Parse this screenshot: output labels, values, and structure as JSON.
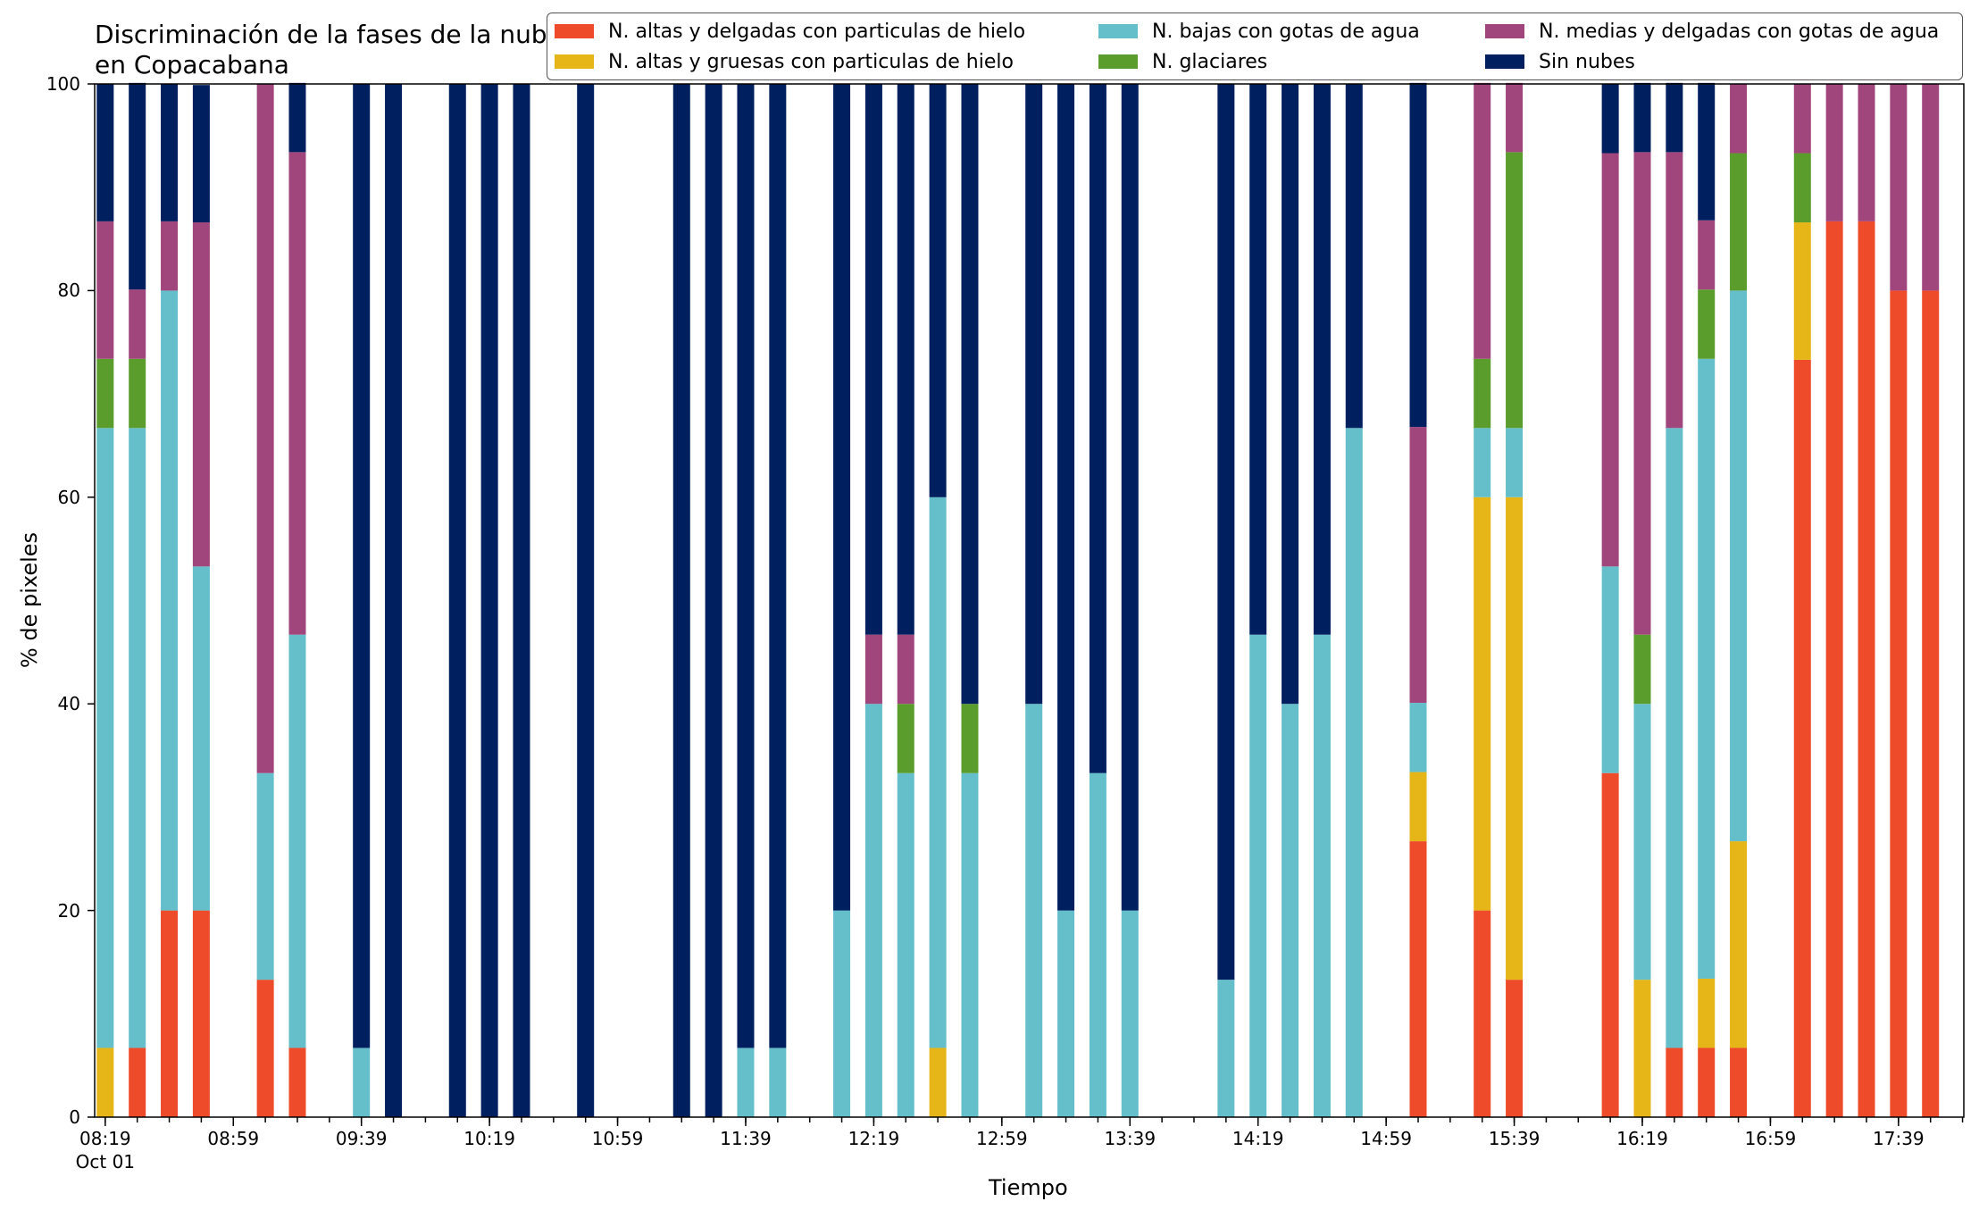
{
  "chart_data": {
    "type": "bar",
    "stacked": true,
    "title": "Discriminación de la fases de la nube en Copacabana",
    "xlabel": "Tiempo",
    "ylabel": "% de pixeles",
    "ylim": [
      0,
      100
    ],
    "yticks": [
      "0",
      "20",
      "40",
      "60",
      "80",
      "100"
    ],
    "xtick_labels": [
      {
        "time": "08:19",
        "sub": "Oct 01"
      },
      {
        "time": "08:59",
        "sub": ""
      },
      {
        "time": "09:39",
        "sub": ""
      },
      {
        "time": "10:19",
        "sub": ""
      },
      {
        "time": "10:59",
        "sub": ""
      },
      {
        "time": "11:39",
        "sub": ""
      },
      {
        "time": "12:19",
        "sub": ""
      },
      {
        "time": "12:59",
        "sub": ""
      },
      {
        "time": "13:39",
        "sub": ""
      },
      {
        "time": "14:19",
        "sub": ""
      },
      {
        "time": "14:59",
        "sub": ""
      },
      {
        "time": "15:39",
        "sub": ""
      },
      {
        "time": "16:19",
        "sub": ""
      },
      {
        "time": "16:59",
        "sub": ""
      },
      {
        "time": "17:39",
        "sub": ""
      }
    ],
    "xrange": [
      "08:19",
      "17:59"
    ],
    "grid": false,
    "legend_position": "top-right",
    "series": [
      {
        "name": "N. altas y delgadas con particulas de hielo",
        "color": "#ee4b2b"
      },
      {
        "name": "N. altas y gruesas con particulas de hielo",
        "color": "#e6b618"
      },
      {
        "name": "N. bajas con gotas de agua",
        "color": "#65bfcb"
      },
      {
        "name": "N. glaciares",
        "color": "#5b9d2c"
      },
      {
        "name": "N. medias y delgadas con gotas de agua",
        "color": "#a1457d"
      },
      {
        "name": "Sin nubes",
        "color": "#001f5f"
      }
    ],
    "legend_order": [
      0,
      2,
      4,
      1,
      3,
      5
    ],
    "bars": [
      {
        "time": "08:19",
        "values": [
          0,
          6.7,
          60,
          6.7,
          13.3,
          13.3
        ]
      },
      {
        "time": "08:29",
        "values": [
          6.7,
          0,
          60,
          6.7,
          6.7,
          20
        ]
      },
      {
        "time": "08:39",
        "values": [
          20,
          0,
          60,
          0,
          6.7,
          13.3
        ]
      },
      {
        "time": "08:49",
        "values": [
          20,
          0,
          33.3,
          0,
          33.3,
          13.3
        ]
      },
      {
        "time": "09:09",
        "values": [
          13.3,
          0,
          20,
          0,
          66.7,
          0
        ]
      },
      {
        "time": "09:19",
        "values": [
          6.7,
          0,
          40,
          0,
          46.7,
          6.7
        ]
      },
      {
        "time": "09:39",
        "values": [
          0,
          0,
          6.7,
          0,
          0,
          93.3
        ]
      },
      {
        "time": "09:49",
        "values": [
          0,
          0,
          0,
          0,
          0,
          100
        ]
      },
      {
        "time": "10:09",
        "values": [
          0,
          0,
          0,
          0,
          0,
          100
        ]
      },
      {
        "time": "10:19",
        "values": [
          0,
          0,
          0,
          0,
          0,
          100
        ]
      },
      {
        "time": "10:29",
        "values": [
          0,
          0,
          0,
          0,
          0,
          100
        ]
      },
      {
        "time": "10:49",
        "values": [
          0,
          0,
          0,
          0,
          0,
          100
        ]
      },
      {
        "time": "11:19",
        "values": [
          0,
          0,
          0,
          0,
          0,
          100
        ]
      },
      {
        "time": "11:29",
        "values": [
          0,
          0,
          0,
          0,
          0,
          100
        ]
      },
      {
        "time": "11:39",
        "values": [
          0,
          0,
          6.7,
          0,
          0,
          93.3
        ]
      },
      {
        "time": "11:49",
        "values": [
          0,
          0,
          6.7,
          0,
          0,
          93.3
        ]
      },
      {
        "time": "12:09",
        "values": [
          0,
          0,
          20,
          0,
          0,
          80
        ]
      },
      {
        "time": "12:19",
        "values": [
          0,
          0,
          40,
          0,
          6.7,
          53.3
        ]
      },
      {
        "time": "12:29",
        "values": [
          0,
          0,
          33.3,
          6.7,
          6.7,
          53.3
        ]
      },
      {
        "time": "12:39",
        "values": [
          0,
          6.7,
          53.3,
          0,
          0,
          40
        ]
      },
      {
        "time": "12:49",
        "values": [
          0,
          0,
          33.3,
          6.7,
          0,
          60
        ]
      },
      {
        "time": "13:09",
        "values": [
          0,
          0,
          40,
          0,
          0,
          60
        ]
      },
      {
        "time": "13:19",
        "values": [
          0,
          0,
          20,
          0,
          0,
          80
        ]
      },
      {
        "time": "13:29",
        "values": [
          0,
          0,
          33.3,
          0,
          0,
          66.7
        ]
      },
      {
        "time": "13:39",
        "values": [
          0,
          0,
          20,
          0,
          0,
          80
        ]
      },
      {
        "time": "14:09",
        "values": [
          0,
          0,
          13.3,
          0,
          0,
          86.7
        ]
      },
      {
        "time": "14:19",
        "values": [
          0,
          0,
          46.7,
          0,
          0,
          53.3
        ]
      },
      {
        "time": "14:29",
        "values": [
          0,
          0,
          40,
          0,
          0,
          60
        ]
      },
      {
        "time": "14:39",
        "values": [
          0,
          0,
          46.7,
          0,
          0,
          53.3
        ]
      },
      {
        "time": "14:49",
        "values": [
          0,
          0,
          66.7,
          0,
          0,
          33.3
        ]
      },
      {
        "time": "15:09",
        "values": [
          26.7,
          6.7,
          6.7,
          0,
          26.7,
          33.3
        ]
      },
      {
        "time": "15:29",
        "values": [
          20,
          40,
          6.7,
          6.7,
          26.7,
          0
        ]
      },
      {
        "time": "15:39",
        "values": [
          13.3,
          46.7,
          6.7,
          26.7,
          6.7,
          0
        ]
      },
      {
        "time": "16:09",
        "values": [
          33.3,
          0,
          20,
          0,
          40,
          6.7
        ]
      },
      {
        "time": "16:19",
        "values": [
          0,
          13.3,
          26.7,
          6.7,
          46.7,
          6.7
        ]
      },
      {
        "time": "16:29",
        "values": [
          6.7,
          0,
          60,
          0,
          26.7,
          6.7
        ]
      },
      {
        "time": "16:39",
        "values": [
          6.7,
          6.7,
          60,
          6.7,
          6.7,
          13.3
        ]
      },
      {
        "time": "16:49",
        "values": [
          6.7,
          20,
          53.3,
          13.3,
          6.7,
          0
        ]
      },
      {
        "time": "17:09",
        "values": [
          73.3,
          13.3,
          0,
          6.7,
          6.7,
          0
        ]
      },
      {
        "time": "17:19",
        "values": [
          86.7,
          0,
          0,
          0,
          13.3,
          0
        ]
      },
      {
        "time": "17:29",
        "values": [
          86.7,
          0,
          0,
          0,
          13.3,
          0
        ]
      },
      {
        "time": "17:39",
        "values": [
          80,
          0,
          0,
          0,
          20,
          0
        ]
      },
      {
        "time": "17:49",
        "values": [
          80,
          0,
          0,
          0,
          20,
          0
        ]
      }
    ]
  }
}
